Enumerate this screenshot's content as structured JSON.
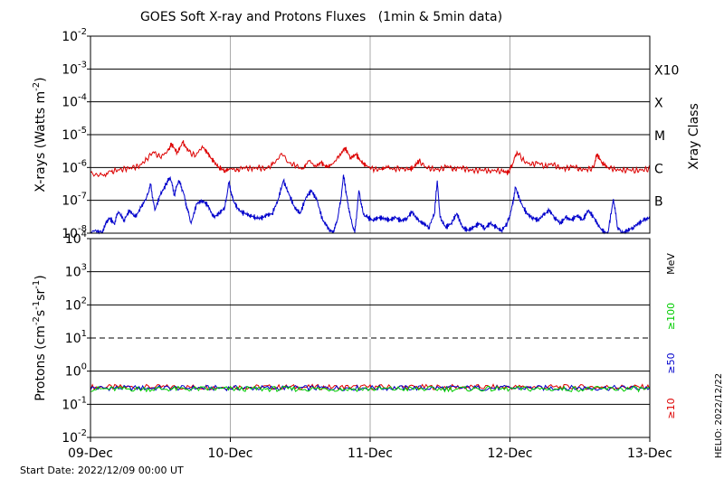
{
  "chart_data": [
    {
      "type": "line",
      "panel": "xray",
      "title": "GOES Soft X-ray and Protons Fluxes   (1min & 5min data)",
      "ylabel": "X-rays (Watts m",
      "ylabel_sup": "-2",
      "ylabel_close": ")",
      "yscale": "log",
      "ylim": [
        1e-08,
        0.01
      ],
      "yticks": [
        {
          "base": "10",
          "exp": "-8"
        },
        {
          "base": "10",
          "exp": "-7"
        },
        {
          "base": "10",
          "exp": "-6"
        },
        {
          "base": "10",
          "exp": "-5"
        },
        {
          "base": "10",
          "exp": "-4"
        },
        {
          "base": "10",
          "exp": "-3"
        },
        {
          "base": "10",
          "exp": "-2"
        }
      ],
      "x_ticks": [
        "09-Dec",
        "10-Dec",
        "11-Dec",
        "12-Dec",
        "13-Dec"
      ],
      "xlim_days": [
        0,
        4
      ],
      "right_axis_label": "Xray Class",
      "class_labels": [
        {
          "label": "B",
          "level": 1e-07
        },
        {
          "label": "C",
          "level": 1e-06
        },
        {
          "label": "M",
          "level": 1e-05
        },
        {
          "label": "X",
          "level": 0.0001
        },
        {
          "label": "X10",
          "level": 0.001
        }
      ],
      "series": [
        {
          "color": "#dd0000",
          "points": [
            [
              0.0,
              7e-07
            ],
            [
              0.08,
              6e-07
            ],
            [
              0.15,
              7.5e-07
            ],
            [
              0.2,
              8.5e-07
            ],
            [
              0.25,
              9e-07
            ],
            [
              0.3,
              1e-06
            ],
            [
              0.35,
              1.1e-06
            ],
            [
              0.4,
              1.8e-06
            ],
            [
              0.45,
              3e-06
            ],
            [
              0.5,
              2e-06
            ],
            [
              0.55,
              3.2e-06
            ],
            [
              0.58,
              5.2e-06
            ],
            [
              0.62,
              2.8e-06
            ],
            [
              0.66,
              5.8e-06
            ],
            [
              0.7,
              3.2e-06
            ],
            [
              0.75,
              2.2e-06
            ],
            [
              0.8,
              4.5e-06
            ],
            [
              0.84,
              2.6e-06
            ],
            [
              0.88,
              1.5e-06
            ],
            [
              0.92,
              1e-06
            ],
            [
              0.96,
              8e-07
            ],
            [
              1.0,
              9e-07
            ],
            [
              1.05,
              8.5e-07
            ],
            [
              1.1,
              1e-06
            ],
            [
              1.15,
              9e-07
            ],
            [
              1.2,
              1e-06
            ],
            [
              1.25,
              9e-07
            ],
            [
              1.3,
              1.2e-06
            ],
            [
              1.36,
              2.6e-06
            ],
            [
              1.42,
              1.4e-06
            ],
            [
              1.47,
              1.1e-06
            ],
            [
              1.52,
              9e-07
            ],
            [
              1.56,
              1.6e-06
            ],
            [
              1.61,
              1.1e-06
            ],
            [
              1.65,
              1.4e-06
            ],
            [
              1.69,
              1e-06
            ],
            [
              1.73,
              1.3e-06
            ],
            [
              1.78,
              2.2e-06
            ],
            [
              1.82,
              4e-06
            ],
            [
              1.86,
              2e-06
            ],
            [
              1.9,
              2.5e-06
            ],
            [
              1.94,
              1.4e-06
            ],
            [
              1.98,
              1.1e-06
            ],
            [
              2.03,
              8.5e-07
            ],
            [
              2.08,
              9e-07
            ],
            [
              2.12,
              1e-06
            ],
            [
              2.17,
              9e-07
            ],
            [
              2.22,
              9.5e-07
            ],
            [
              2.27,
              8.5e-07
            ],
            [
              2.31,
              1e-06
            ],
            [
              2.35,
              1.6e-06
            ],
            [
              2.4,
              1e-06
            ],
            [
              2.45,
              9e-07
            ],
            [
              2.5,
              8.5e-07
            ],
            [
              2.55,
              1.1e-06
            ],
            [
              2.6,
              9e-07
            ],
            [
              2.65,
              1e-06
            ],
            [
              2.7,
              8.5e-07
            ],
            [
              2.75,
              8e-07
            ],
            [
              2.8,
              8.5e-07
            ],
            [
              2.85,
              8e-07
            ],
            [
              2.9,
              8e-07
            ],
            [
              2.95,
              7.5e-07
            ],
            [
              2.99,
              7e-07
            ],
            [
              3.02,
              1.3e-06
            ],
            [
              3.05,
              3e-06
            ],
            [
              3.1,
              1.6e-06
            ],
            [
              3.15,
              1.2e-06
            ],
            [
              3.2,
              1.4e-06
            ],
            [
              3.25,
              1.1e-06
            ],
            [
              3.3,
              1.3e-06
            ],
            [
              3.35,
              1e-06
            ],
            [
              3.4,
              9e-07
            ],
            [
              3.45,
              1.1e-06
            ],
            [
              3.5,
              9e-07
            ],
            [
              3.55,
              8.5e-07
            ],
            [
              3.6,
              1e-06
            ],
            [
              3.62,
              2.6e-06
            ],
            [
              3.66,
              1.4e-06
            ],
            [
              3.7,
              1e-06
            ],
            [
              3.75,
              9e-07
            ],
            [
              3.8,
              8e-07
            ],
            [
              3.85,
              8.5e-07
            ],
            [
              3.9,
              8e-07
            ],
            [
              3.95,
              8.5e-07
            ],
            [
              4.0,
              9e-07
            ]
          ]
        },
        {
          "color": "#0000cc",
          "points": [
            [
              0.0,
              1.1e-08
            ],
            [
              0.05,
              1.2e-08
            ],
            [
              0.08,
              1e-08
            ],
            [
              0.1,
              1.5e-08
            ],
            [
              0.13,
              3e-08
            ],
            [
              0.17,
              2e-08
            ],
            [
              0.2,
              4.5e-08
            ],
            [
              0.24,
              2.5e-08
            ],
            [
              0.28,
              5e-08
            ],
            [
              0.32,
              3e-08
            ],
            [
              0.36,
              6e-08
            ],
            [
              0.4,
              1.2e-07
            ],
            [
              0.43,
              3e-07
            ],
            [
              0.46,
              5e-08
            ],
            [
              0.5,
              1.5e-07
            ],
            [
              0.54,
              3e-07
            ],
            [
              0.57,
              5e-07
            ],
            [
              0.6,
              1.5e-07
            ],
            [
              0.63,
              4e-07
            ],
            [
              0.66,
              2e-07
            ],
            [
              0.69,
              6e-08
            ],
            [
              0.72,
              2e-08
            ],
            [
              0.76,
              8e-08
            ],
            [
              0.8,
              1e-07
            ],
            [
              0.84,
              7e-08
            ],
            [
              0.88,
              3e-08
            ],
            [
              0.92,
              4e-08
            ],
            [
              0.96,
              6e-08
            ],
            [
              0.99,
              3.5e-07
            ],
            [
              1.02,
              1e-07
            ],
            [
              1.06,
              5e-08
            ],
            [
              1.1,
              4e-08
            ],
            [
              1.14,
              3.5e-08
            ],
            [
              1.18,
              3e-08
            ],
            [
              1.22,
              2.8e-08
            ],
            [
              1.26,
              3.5e-08
            ],
            [
              1.3,
              4e-08
            ],
            [
              1.34,
              1e-07
            ],
            [
              1.38,
              4e-07
            ],
            [
              1.42,
              1.5e-07
            ],
            [
              1.46,
              6e-08
            ],
            [
              1.5,
              4e-08
            ],
            [
              1.54,
              1.2e-07
            ],
            [
              1.58,
              2e-07
            ],
            [
              1.62,
              1e-07
            ],
            [
              1.66,
              2.5e-08
            ],
            [
              1.7,
              1.5e-08
            ],
            [
              1.73,
              1e-08
            ],
            [
              1.76,
              2e-08
            ],
            [
              1.79,
              1e-07
            ],
            [
              1.81,
              6e-07
            ],
            [
              1.83,
              1.5e-07
            ],
            [
              1.86,
              3e-08
            ],
            [
              1.89,
              1e-08
            ],
            [
              1.92,
              2e-07
            ],
            [
              1.95,
              4e-08
            ],
            [
              1.98,
              3e-08
            ],
            [
              2.02,
              2.5e-08
            ],
            [
              2.06,
              3e-08
            ],
            [
              2.1,
              2.8e-08
            ],
            [
              2.14,
              2.5e-08
            ],
            [
              2.18,
              3e-08
            ],
            [
              2.22,
              2.4e-08
            ],
            [
              2.26,
              2.8e-08
            ],
            [
              2.3,
              4.5e-08
            ],
            [
              2.34,
              2.5e-08
            ],
            [
              2.38,
              2e-08
            ],
            [
              2.42,
              1.5e-08
            ],
            [
              2.46,
              4e-08
            ],
            [
              2.48,
              4e-07
            ],
            [
              2.5,
              3e-08
            ],
            [
              2.54,
              1.5e-08
            ],
            [
              2.58,
              2e-08
            ],
            [
              2.62,
              4e-08
            ],
            [
              2.66,
              1.5e-08
            ],
            [
              2.7,
              1.2e-08
            ],
            [
              2.74,
              1.5e-08
            ],
            [
              2.78,
              2e-08
            ],
            [
              2.82,
              1.4e-08
            ],
            [
              2.86,
              2e-08
            ],
            [
              2.9,
              1.5e-08
            ],
            [
              2.94,
              1.2e-08
            ],
            [
              2.98,
              2e-08
            ],
            [
              3.01,
              5e-08
            ],
            [
              3.04,
              2.5e-07
            ],
            [
              3.08,
              8e-08
            ],
            [
              3.12,
              4e-08
            ],
            [
              3.16,
              3e-08
            ],
            [
              3.2,
              2.5e-08
            ],
            [
              3.24,
              3.5e-08
            ],
            [
              3.28,
              5e-08
            ],
            [
              3.32,
              3e-08
            ],
            [
              3.36,
              2e-08
            ],
            [
              3.4,
              3e-08
            ],
            [
              3.44,
              2.5e-08
            ],
            [
              3.48,
              3.5e-08
            ],
            [
              3.52,
              2.5e-08
            ],
            [
              3.56,
              5e-08
            ],
            [
              3.6,
              3e-08
            ],
            [
              3.64,
              1.5e-08
            ],
            [
              3.68,
              1e-08
            ],
            [
              3.7,
              1e-08
            ],
            [
              3.74,
              1.1e-07
            ],
            [
              3.77,
              1.5e-08
            ],
            [
              3.8,
              1e-08
            ],
            [
              3.84,
              1.2e-08
            ],
            [
              3.88,
              1.5e-08
            ],
            [
              3.92,
              2e-08
            ],
            [
              3.96,
              2.5e-08
            ],
            [
              4.0,
              3e-08
            ]
          ]
        }
      ]
    },
    {
      "type": "line",
      "panel": "protons",
      "ylabel": "Protons (cm",
      "ylabel_sup1": "-2",
      "ylabel_mid": "s",
      "ylabel_sup2": "-1",
      "ylabel_mid2": "sr",
      "ylabel_sup3": "-1",
      "ylabel_close": ")",
      "yscale": "log",
      "ylim": [
        0.01,
        10000
      ],
      "yticks": [
        {
          "base": "10",
          "exp": "-2"
        },
        {
          "base": "10",
          "exp": "-1"
        },
        {
          "base": "10",
          "exp": "0"
        },
        {
          "base": "10",
          "exp": "1"
        },
        {
          "base": "10",
          "exp": "2"
        },
        {
          "base": "10",
          "exp": "3"
        },
        {
          "base": "10",
          "exp": "4"
        }
      ],
      "threshold_line": {
        "level": 10,
        "style": "dashed"
      },
      "x_ticks": [
        "09-Dec",
        "10-Dec",
        "11-Dec",
        "12-Dec",
        "13-Dec"
      ],
      "xlim_days": [
        0,
        4
      ],
      "unit_label": "MeV",
      "energy_labels": [
        {
          "label": "≥100",
          "color": "#00cc00"
        },
        {
          "label": "≥50",
          "color": "#0000cc"
        },
        {
          "label": "≥10",
          "color": "#dd0000"
        }
      ],
      "series": [
        {
          "name": "≥10",
          "color": "#dd0000",
          "baseline": 0.33
        },
        {
          "name": "≥50",
          "color": "#0000cc",
          "baseline": 0.31
        },
        {
          "name": "≥100",
          "color": "#00cc00",
          "baseline": 0.29
        }
      ]
    }
  ],
  "footer": {
    "start_date": "Start Date: 2022/12/09 00:00 UT",
    "credit": "HELIO: 2022/12/22"
  },
  "colors": {
    "axis": "#000000",
    "day_grid": "#aaaaaa"
  }
}
